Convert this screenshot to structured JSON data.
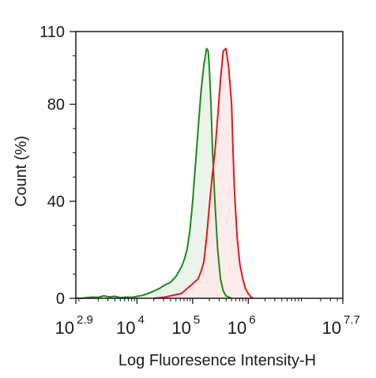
{
  "chart_data": {
    "type": "area",
    "title": "",
    "xlabel": "Log Fluoresence Intensity-H",
    "ylabel": "Count  (%)",
    "xscale": "log10",
    "xlim": [
      2.9,
      7.7
    ],
    "ylim": [
      0,
      110
    ],
    "grid": false,
    "legend": "none",
    "x_ticks": [
      {
        "exp": 2.9,
        "base": "10",
        "sup": "2.9"
      },
      {
        "exp": 4,
        "base": "10",
        "sup": "4"
      },
      {
        "exp": 5,
        "base": "10",
        "sup": "5"
      },
      {
        "exp": 6,
        "base": "10",
        "sup": "6"
      },
      {
        "exp": 7.7,
        "base": "10",
        "sup": "7.7"
      }
    ],
    "y_ticks": [
      {
        "value": 0,
        "label": "0"
      },
      {
        "value": 40,
        "label": "40"
      },
      {
        "value": 80,
        "label": "80"
      },
      {
        "value": 110,
        "label": "110"
      }
    ],
    "series": [
      {
        "color": "#1a8a1a",
        "fill": "#e6f2e6",
        "x_log": [
          2.9,
          3.0,
          3.1,
          3.2,
          3.3,
          3.4,
          3.5,
          3.6,
          3.7,
          3.8,
          3.9,
          4.0,
          4.1,
          4.2,
          4.3,
          4.4,
          4.5,
          4.6,
          4.7,
          4.8,
          4.85,
          4.9,
          4.95,
          5.0,
          5.05,
          5.1,
          5.15,
          5.2,
          5.25,
          5.28,
          5.3,
          5.33,
          5.36,
          5.4,
          5.45,
          5.5,
          5.55,
          5.6,
          5.7
        ],
        "values": [
          0,
          0,
          0.3,
          0.5,
          0.4,
          1.0,
          0.6,
          0.8,
          0.3,
          0.5,
          0.4,
          0.8,
          1.2,
          2.0,
          3.0,
          4.0,
          5.5,
          6.5,
          9,
          13,
          16,
          20,
          28,
          40,
          55,
          70,
          85,
          96,
          103,
          102,
          95,
          80,
          60,
          40,
          20,
          8,
          3,
          1,
          0
        ]
      },
      {
        "color": "#e0191b",
        "fill": "#fbe8e8",
        "x_log": [
          4.3,
          4.5,
          4.7,
          4.8,
          4.9,
          5.0,
          5.1,
          5.15,
          5.2,
          5.25,
          5.3,
          5.35,
          5.4,
          5.45,
          5.5,
          5.55,
          5.6,
          5.65,
          5.7,
          5.72,
          5.75,
          5.8,
          5.85,
          5.9,
          5.95,
          6.0,
          6.05,
          6.1
        ],
        "values": [
          0,
          0.5,
          1.5,
          2,
          4,
          6,
          8,
          11,
          15,
          25,
          38,
          50,
          60,
          75,
          90,
          102,
          103,
          95,
          80,
          65,
          45,
          25,
          14,
          8,
          4,
          2,
          0.5,
          0
        ]
      }
    ]
  }
}
